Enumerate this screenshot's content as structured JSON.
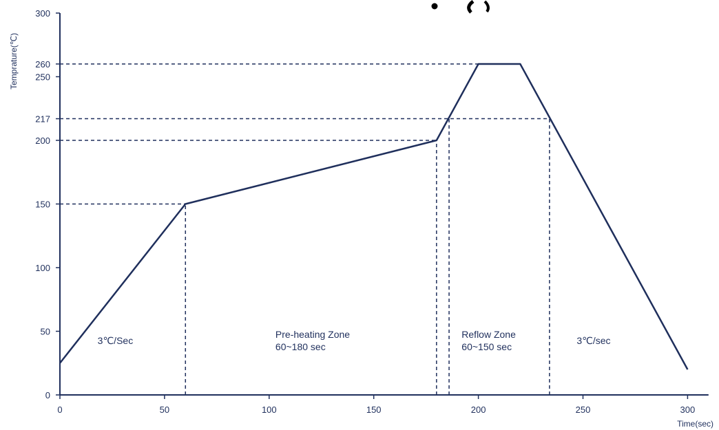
{
  "chart_data": {
    "type": "line",
    "title": "",
    "xlabel": "Time(sec)",
    "ylabel": "Temprature(℃)",
    "xlim": [
      0,
      310
    ],
    "ylim": [
      0,
      300
    ],
    "x_ticks": [
      0,
      50,
      100,
      150,
      200,
      250,
      300
    ],
    "y_ticks": [
      0,
      50,
      100,
      150,
      200,
      217,
      250,
      260,
      300
    ],
    "grid": false,
    "series": [
      {
        "x": [
          0,
          60,
          180,
          200,
          220,
          300
        ],
        "y": [
          25,
          150,
          200,
          260,
          260,
          20
        ]
      }
    ],
    "reference_lines": {
      "horizontal": [
        {
          "y": 260,
          "x_end": 200
        },
        {
          "y": 217,
          "x_end": 234
        },
        {
          "y": 200,
          "x_end": 180
        },
        {
          "y": 150,
          "x_end": 60
        }
      ],
      "vertical": [
        {
          "x": 60,
          "y_end": 150
        },
        {
          "x": 180,
          "y_end": 200
        },
        {
          "x": 186,
          "y_end": 217
        },
        {
          "x": 234,
          "y_end": 217
        }
      ]
    },
    "annotations": [
      {
        "lines": [
          "3℃/Sec"
        ],
        "x": 18,
        "y": 40
      },
      {
        "lines": [
          "Pre-heating Zone",
          "60~180 sec"
        ],
        "x": 103,
        "y": 45
      },
      {
        "lines": [
          "Reflow Zone",
          "60~150 sec"
        ],
        "x": 192,
        "y": 45
      },
      {
        "lines": [
          "3℃/sec"
        ],
        "x": 247,
        "y": 40
      }
    ],
    "colors": {
      "line": "#1f2f5c",
      "text": "#1f2f5c"
    }
  }
}
